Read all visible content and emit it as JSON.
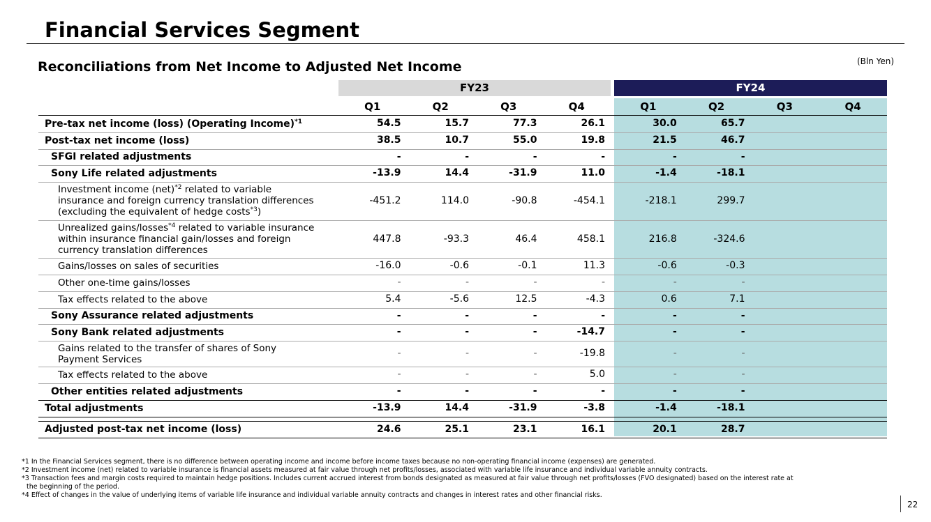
{
  "header": {
    "title": "Financial Services Segment",
    "subtitle": "Reconciliations from Net Income to Adjusted Net Income",
    "unit": "(Bln Yen)"
  },
  "table": {
    "groups": [
      "FY23",
      "FY24"
    ],
    "quarters": [
      "Q1",
      "Q2",
      "Q3",
      "Q4"
    ],
    "rows": [
      {
        "label": [
          [
            {
              "text": "Pre-tax net income (loss) (Operating Income)"
            },
            {
              "sup": "*1"
            }
          ]
        ],
        "bold": true,
        "level": 0,
        "fy23": [
          "54.5",
          "15.7",
          "77.3",
          "26.1"
        ],
        "fy24": [
          "30.0",
          "65.7"
        ]
      },
      {
        "label": [
          [
            {
              "text": "Post-tax net income (loss)"
            }
          ]
        ],
        "bold": true,
        "level": 0,
        "fy23": [
          "38.5",
          "10.7",
          "55.0",
          "19.8"
        ],
        "fy24": [
          "21.5",
          "46.7"
        ]
      },
      {
        "label": [
          [
            {
              "text": "SFGI related adjustments"
            }
          ]
        ],
        "bold": true,
        "level": 1,
        "fy23": [
          "-",
          "-",
          "-",
          "-"
        ],
        "fy24": [
          "-",
          "-"
        ]
      },
      {
        "label": [
          [
            {
              "text": "Sony Life related adjustments"
            }
          ]
        ],
        "bold": true,
        "level": 1,
        "fy23": [
          "-13.9",
          "14.4",
          "-31.9",
          "11.0"
        ],
        "fy24": [
          "-1.4",
          "-18.1"
        ]
      },
      {
        "label": [
          [
            {
              "text": "Investment income (net)"
            },
            {
              "sup": "*2"
            },
            {
              "text": " related to variable"
            }
          ],
          [
            {
              "text": "insurance and foreign currency translation differences"
            }
          ],
          [
            {
              "text": "(excluding the equivalent of hedge costs"
            },
            {
              "sup": "*3"
            },
            {
              "text": ")"
            }
          ]
        ],
        "bold": false,
        "level": 2,
        "fy23": [
          "-451.2",
          "114.0",
          "-90.8",
          "-454.1"
        ],
        "fy24": [
          "-218.1",
          "299.7"
        ]
      },
      {
        "label": [
          [
            {
              "text": "Unrealized gains/losses"
            },
            {
              "sup": "*4"
            },
            {
              "text": " related to variable insurance"
            }
          ],
          [
            {
              "text": "within insurance financial gain/losses and foreign"
            }
          ],
          [
            {
              "text": "currency translation differences"
            }
          ]
        ],
        "bold": false,
        "level": 2,
        "fy23": [
          "447.8",
          "-93.3",
          "46.4",
          "458.1"
        ],
        "fy24": [
          "216.8",
          "-324.6"
        ]
      },
      {
        "label": [
          [
            {
              "text": "Gains/losses on sales of securities"
            }
          ]
        ],
        "bold": false,
        "level": 2,
        "fy23": [
          "-16.0",
          "-0.6",
          "-0.1",
          "11.3"
        ],
        "fy24": [
          "-0.6",
          "-0.3"
        ]
      },
      {
        "label": [
          [
            {
              "text": "Other one-time gains/losses"
            }
          ]
        ],
        "bold": false,
        "level": 2,
        "fy23": [
          "-",
          "-",
          "-",
          "-"
        ],
        "fy24": [
          "-",
          "-"
        ]
      },
      {
        "label": [
          [
            {
              "text": "Tax effects related to the above"
            }
          ]
        ],
        "bold": false,
        "level": 2,
        "fy23": [
          "5.4",
          "-5.6",
          "12.5",
          "-4.3"
        ],
        "fy24": [
          "0.6",
          "7.1"
        ]
      },
      {
        "label": [
          [
            {
              "text": "Sony Assurance related adjustments"
            }
          ]
        ],
        "bold": true,
        "level": 1,
        "fy23": [
          "-",
          "-",
          "-",
          "-"
        ],
        "fy24": [
          "-",
          "-"
        ]
      },
      {
        "label": [
          [
            {
              "text": "Sony Bank related adjustments"
            }
          ]
        ],
        "bold": true,
        "level": 1,
        "fy23": [
          "-",
          "-",
          "-",
          "-14.7"
        ],
        "fy24": [
          "-",
          "-"
        ]
      },
      {
        "label": [
          [
            {
              "text": "Gains related to the transfer of shares of Sony"
            }
          ],
          [
            {
              "text": "Payment Services"
            }
          ]
        ],
        "bold": false,
        "level": 2,
        "fy23": [
          "-",
          "-",
          "-",
          "-19.8"
        ],
        "fy24": [
          "-",
          "-"
        ]
      },
      {
        "label": [
          [
            {
              "text": "Tax effects related to the above"
            }
          ]
        ],
        "bold": false,
        "level": 2,
        "fy23": [
          "-",
          "-",
          "-",
          "5.0"
        ],
        "fy24": [
          "-",
          "-"
        ]
      },
      {
        "label": [
          [
            {
              "text": "Other entities related adjustments"
            }
          ]
        ],
        "bold": true,
        "level": 1,
        "fy23": [
          "-",
          "-",
          "-",
          "-"
        ],
        "fy24": [
          "-",
          "-"
        ]
      },
      {
        "label": [
          [
            {
              "text": "Total adjustments"
            }
          ]
        ],
        "bold": true,
        "level": 0,
        "fy23": [
          "-13.9",
          "14.4",
          "-31.9",
          "-3.8"
        ],
        "fy24": [
          "-1.4",
          "-18.1"
        ]
      },
      {
        "label": [
          [
            {
              "text": "Adjusted post-tax net income (loss)"
            }
          ]
        ],
        "bold": true,
        "level": 0,
        "fy23": [
          "24.6",
          "25.1",
          "23.1",
          "16.1"
        ],
        "fy24": [
          "20.1",
          "28.7"
        ]
      }
    ]
  },
  "footnotes": [
    [
      "*1 In the Financial Services segment, there is no difference between operating income and income before income taxes because no non-operating financial income (expenses) are generated."
    ],
    [
      "*2 Investment income (net) related to variable insurance is financial assets measured at fair value through net profits/losses, associated with variable life insurance and individual variable annuity contracts."
    ],
    [
      "*3 Transaction fees and margin costs required to maintain hedge positions. Includes current accrued interest from bonds designated as measured at fair value through net profits/losses (FVO designated) based on the interest rate at",
      "the beginning of the period."
    ],
    [
      "*4 Effect of changes in the value of underlying items of variable life insurance and individual variable annuity contracts and changes in interest rates and other financial risks."
    ]
  ],
  "page_number": "22"
}
